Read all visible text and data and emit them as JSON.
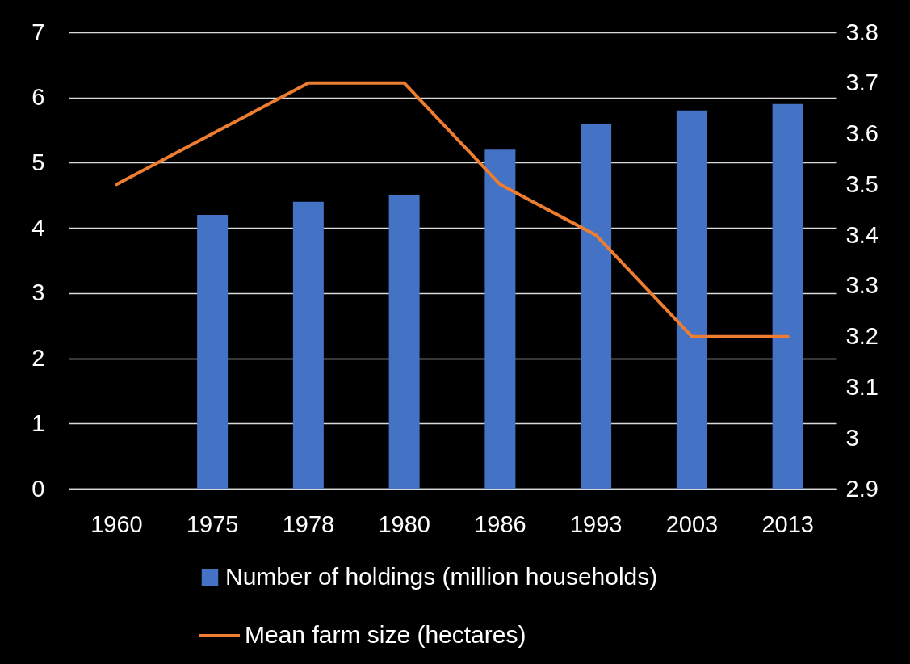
{
  "chart_data": {
    "type": "bar",
    "categories": [
      "1960",
      "1975",
      "1978",
      "1980",
      "1986",
      "1993",
      "2003",
      "2013"
    ],
    "series": [
      {
        "name": "Number of holdings (million households)",
        "color": "#4472c4",
        "values": [
          null,
          4.2,
          4.4,
          4.5,
          5.2,
          5.6,
          5.8,
          5.9
        ]
      },
      {
        "name": "Mean farm size (hectares)",
        "type": "line",
        "axis": "y2",
        "color": "#ed7d31",
        "values": [
          3.5,
          3.6,
          3.7,
          3.7,
          3.5,
          3.4,
          3.2,
          3.2
        ]
      }
    ],
    "ylim": [
      0,
      7
    ],
    "yticks": [
      0,
      1,
      2,
      3,
      4,
      5,
      6,
      7
    ],
    "y2lim": [
      2.9,
      3.8
    ],
    "y2ticks": [
      2.9,
      3,
      3.1,
      3.2,
      3.3,
      3.4,
      3.5,
      3.6,
      3.7,
      3.8
    ],
    "grid": "y",
    "legend": "bottom",
    "marker": "none",
    "line_style": "solid"
  }
}
